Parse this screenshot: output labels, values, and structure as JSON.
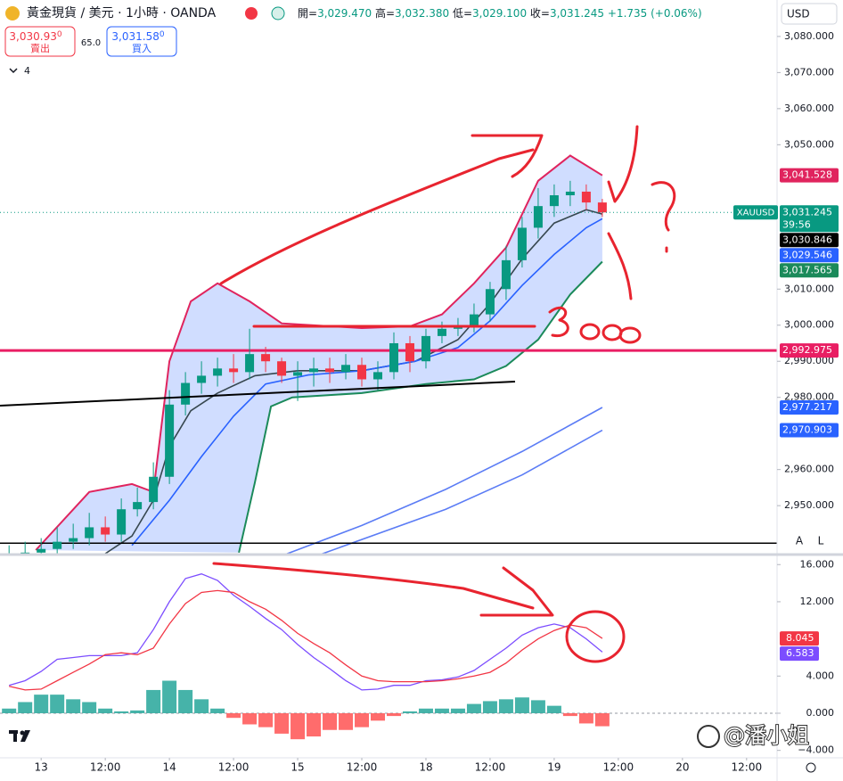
{
  "header": {
    "symbol": "黃金現貨 / 美元 · 1小時 · OANDA",
    "ohlc": [
      {
        "label": "開=",
        "value": "3,029.470"
      },
      {
        "label": "高=",
        "value": "3,032.380"
      },
      {
        "label": "低=",
        "value": "3,029.100"
      },
      {
        "label": "收=",
        "value": "3,031.245"
      }
    ],
    "change": "+1.735 (+0.06%)",
    "currency": "USD"
  },
  "trade": {
    "sell_price": "3,030.93",
    "sell_sup": "0",
    "sell_label": "賣出",
    "spread": "65.0",
    "buy_price": "3,031.58",
    "buy_sup": "0",
    "buy_label": "買入"
  },
  "indicators_count": "4",
  "scale_buttons": [
    "A",
    "L"
  ],
  "watermark": "@潘小姐",
  "chart_data": [
    {
      "type": "candlestick",
      "x": [
        -6,
        -3,
        0,
        3,
        6,
        9,
        12,
        15,
        18,
        21,
        24,
        27,
        30,
        33,
        36,
        39,
        42,
        45,
        48,
        51,
        54,
        57,
        60,
        63,
        66,
        69,
        72,
        75,
        78,
        81,
        84,
        87,
        90,
        93,
        96,
        99,
        102,
        105
      ],
      "open": [
        2934,
        2936,
        2937,
        2938,
        2940,
        2941,
        2944,
        2942,
        2949,
        2951,
        2958,
        2978,
        2984,
        2986,
        2988,
        2987,
        2992,
        2990,
        2986,
        2987,
        2988,
        2987,
        2989,
        2985,
        2987,
        2995,
        2990,
        2997,
        2999,
        3000,
        3003,
        3010,
        3018,
        3027,
        3033,
        3036,
        3037,
        3034
      ],
      "high": [
        2939,
        2940,
        2941,
        2944,
        2945,
        2948,
        2947,
        2952,
        2955,
        2962,
        2982,
        2987,
        2990,
        2991,
        2992,
        2999,
        2994,
        2991,
        2990,
        2991,
        2991,
        2992,
        2991,
        2990,
        2998,
        2997,
        2999,
        3001,
        3002,
        3006,
        3012,
        3022,
        3030,
        3038,
        3039,
        3040,
        3039,
        3035
      ],
      "low": [
        2932,
        2934,
        2935,
        2936,
        2938,
        2939,
        2940,
        2940,
        2947,
        2949,
        2956,
        2975,
        2981,
        2983,
        2984,
        2985,
        2987,
        2984,
        2979,
        2983,
        2984,
        2985,
        2983,
        2982,
        2985,
        2987,
        2988,
        2995,
        2997,
        2998,
        3001,
        3007,
        3016,
        3024,
        3030,
        3033,
        3032,
        3030
      ],
      "close": [
        2936,
        2937,
        2938,
        2940,
        2941,
        2944,
        2942,
        2949,
        2951,
        2958,
        2978,
        2984,
        2986,
        2988,
        2987,
        2992,
        2990,
        2986,
        2987,
        2988,
        2987,
        2989,
        2985,
        2987,
        2995,
        2990,
        2997,
        2999,
        3000,
        3003,
        3010,
        3018,
        3027,
        3033,
        3036,
        3037,
        3034,
        3031.245
      ],
      "up_color": "#089981",
      "down_color": "#f23645",
      "xlim": [
        -7.7,
        137.7
      ],
      "ylim": [
        2936.7,
        3090.1
      ],
      "yticks": [
        {
          "value": 3080,
          "label": "3,080.000"
        },
        {
          "value": 3070,
          "label": "3,070.000"
        },
        {
          "value": 3060,
          "label": "3,060.000"
        },
        {
          "value": 3050,
          "label": "3,050.000"
        },
        {
          "value": 3010,
          "label": "3,010.000"
        },
        {
          "value": 3000,
          "label": "3,000.000"
        },
        {
          "value": 2990,
          "label": "2,990.000"
        },
        {
          "value": 2980,
          "label": "2,980.000"
        },
        {
          "value": 2960,
          "label": "2,960.000"
        },
        {
          "value": 2950,
          "label": "2,950.000"
        }
      ],
      "band_fill": "rgba(41,98,255,0.22)",
      "bands": {
        "upper": {
          "color": "#e0245e",
          "x": [
            -1,
            9,
            17,
            21,
            24,
            28,
            33,
            39,
            45,
            60,
            69,
            75,
            81,
            87,
            93,
            99,
            105
          ],
          "values": [
            2937.7,
            2953.8,
            2956,
            2953.8,
            2990,
            3006.6,
            3011.6,
            3006.6,
            3000.5,
            2999.2,
            2999.7,
            3003,
            3011.6,
            3021.5,
            3040,
            3047,
            3041.5
          ]
        },
        "lower": {
          "color": "#1b8a5a",
          "x": [
            37,
            40,
            43,
            47,
            60,
            72,
            81,
            87,
            93,
            99,
            105
          ],
          "values": [
            2937,
            2956.5,
            2977.5,
            2980,
            2981.2,
            2983.7,
            2985,
            2988.7,
            2996,
            3008.5,
            3017.6
          ]
        }
      },
      "lines": [
        {
          "color": "#37474f",
          "x": [
            12,
            17,
            21,
            24,
            28,
            33,
            40,
            48,
            60,
            70,
            78,
            84,
            90,
            96,
            102,
            105
          ],
          "values": [
            2936.7,
            2941.6,
            2951.5,
            2966.4,
            2976.3,
            2981.2,
            2986,
            2987.4,
            2987.4,
            2990,
            2996,
            3006,
            3018.4,
            3028.3,
            3032,
            3030.8
          ]
        },
        {
          "color": "#2962ff",
          "x": [
            17,
            24,
            30,
            36,
            42,
            50,
            60,
            70,
            78,
            84,
            90,
            96,
            102,
            105
          ],
          "values": [
            2939,
            2951.5,
            2963.6,
            2974.8,
            2983.7,
            2986.2,
            2987.4,
            2990,
            2993.8,
            3001.2,
            3011,
            3019.6,
            3027,
            3029.5
          ]
        },
        {
          "color": "#5b7cf5",
          "x": [
            45.7,
            60,
            75.7,
            90,
            105
          ],
          "values": [
            2936.5,
            2944.5,
            2954.5,
            2965,
            2977.2
          ]
        },
        {
          "color": "#5b7cf5",
          "x": [
            52.3,
            75.7,
            90,
            105
          ],
          "values": [
            2936.5,
            2949,
            2958.5,
            2970.9
          ]
        }
      ],
      "hlines": [
        {
          "value": 2992.975,
          "color": "#e91e63"
        },
        {
          "value": 2939.6,
          "color": "#000000"
        }
      ],
      "price_labels": [
        {
          "value": 3041.528,
          "label": "3,041.528",
          "color": "#e0245e"
        },
        {
          "value": 3031.245,
          "label": "3,031.245",
          "color": "#089981",
          "tag": "XAUUSD",
          "countdown": "39:56"
        },
        {
          "value": 3030.846,
          "label": "3,030.846",
          "color": "#000000"
        },
        {
          "value": 3029.546,
          "label": "3,029.546",
          "color": "#2962ff"
        },
        {
          "value": 3017.565,
          "label": "3,017.565",
          "color": "#1b8a5a"
        },
        {
          "value": 2992.975,
          "label": "2,992.975",
          "color": "#e91e63"
        },
        {
          "value": 2977.217,
          "label": "2,977.217",
          "color": "#2962ff"
        },
        {
          "value": 2970.903,
          "label": "2,970.903",
          "color": "#2962ff"
        }
      ]
    },
    {
      "type": "macd",
      "x": [
        -6,
        -3,
        0,
        3,
        6,
        9,
        12,
        15,
        18,
        21,
        24,
        27,
        30,
        33,
        36,
        39,
        42,
        45,
        48,
        51,
        54,
        57,
        60,
        63,
        66,
        69,
        72,
        75,
        78,
        81,
        84,
        87,
        90,
        93,
        96,
        99,
        102,
        105
      ],
      "series": [
        {
          "color": "#7c4dff",
          "values": [
            3.0,
            3.5,
            4.5,
            5.8,
            6.0,
            6.2,
            6.2,
            6.2,
            6.5,
            9.0,
            12.0,
            14.5,
            15.0,
            14.3,
            12.7,
            11.5,
            10.2,
            9.0,
            7.4,
            6.0,
            4.8,
            3.5,
            2.5,
            2.6,
            3.0,
            3.0,
            3.5,
            3.6,
            3.9,
            4.6,
            5.8,
            7.0,
            8.4,
            9.2,
            9.6,
            9.2,
            8.0,
            6.583
          ]
        },
        {
          "color": "#f23645",
          "values": [
            2.9,
            2.5,
            2.6,
            3.5,
            4.4,
            5.3,
            6.3,
            6.5,
            6.3,
            7.0,
            9.6,
            11.8,
            13.0,
            13.2,
            13.0,
            12.0,
            11.2,
            10.0,
            8.6,
            7.5,
            6.5,
            5.2,
            4.0,
            3.5,
            3.4,
            3.4,
            3.4,
            3.5,
            3.7,
            4.0,
            4.4,
            5.4,
            6.8,
            8.0,
            8.9,
            9.5,
            9.2,
            8.045
          ]
        }
      ],
      "histogram": {
        "up_color": "#26a69a",
        "down_color": "#ff5252",
        "values": [
          0.5,
          1.2,
          2.0,
          2.0,
          1.5,
          1.2,
          0.5,
          0.2,
          0.3,
          2.5,
          3.5,
          2.5,
          1.5,
          0.5,
          -0.5,
          -1.2,
          -1.5,
          -2.2,
          -2.8,
          -2.5,
          -1.8,
          -1.8,
          -1.5,
          -0.8,
          -0.3,
          0.2,
          0.5,
          0.5,
          0.5,
          1.0,
          1.3,
          1.5,
          1.7,
          1.4,
          0.8,
          -0.3,
          -1.1,
          -1.4
        ]
      },
      "xlim": [
        -7.7,
        137.7
      ],
      "xticks": [
        {
          "value": 0,
          "label": "13"
        },
        {
          "value": 12,
          "label": "12:00"
        },
        {
          "value": 24,
          "label": "14"
        },
        {
          "value": 36,
          "label": "12:00"
        },
        {
          "value": 48,
          "label": "15"
        },
        {
          "value": 60,
          "label": "12:00"
        },
        {
          "value": 72,
          "label": "18"
        },
        {
          "value": 84,
          "label": "12:00"
        },
        {
          "value": 96,
          "label": "19"
        },
        {
          "value": 108,
          "label": "12:00"
        },
        {
          "value": 120,
          "label": "20"
        },
        {
          "value": 132,
          "label": "12:00"
        }
      ],
      "ylim": [
        -4.8,
        17.08
      ],
      "yticks": [
        {
          "value": 16,
          "label": "16.000"
        },
        {
          "value": 12,
          "label": "12.000"
        },
        {
          "value": 4,
          "label": "4.000"
        },
        {
          "value": 0,
          "label": "0.000"
        },
        {
          "value": -4,
          "label": "−4.000"
        }
      ],
      "last_labels": [
        {
          "value": 8.045,
          "label": "8.045",
          "color": "#f23645"
        },
        {
          "value": 6.583,
          "label": "6.583",
          "color": "#7c4dff"
        }
      ]
    }
  ]
}
